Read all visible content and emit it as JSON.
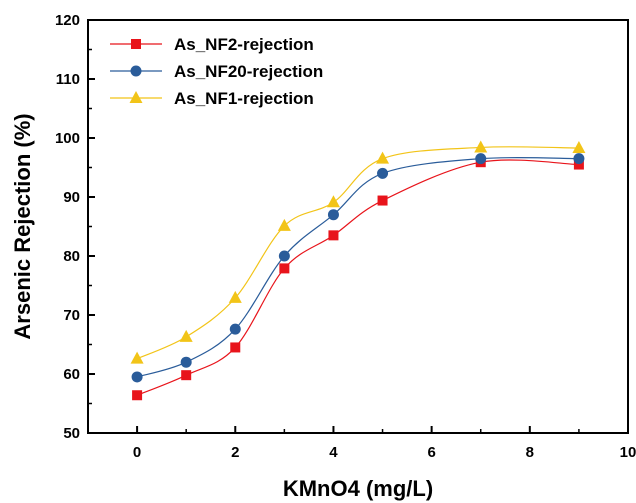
{
  "chart_data": {
    "type": "line",
    "xlabel": "KMnO4 (mg/L)",
    "ylabel": "Arsenic Rejection (%)",
    "xlim": [
      -1,
      10
    ],
    "ylim": [
      50,
      120
    ],
    "xticks": [
      0,
      2,
      4,
      6,
      8,
      10
    ],
    "yticks": [
      50,
      60,
      70,
      80,
      90,
      100,
      110,
      120
    ],
    "grid": false,
    "legend_position": "top-left",
    "series": [
      {
        "name": "As_NF2-rejection",
        "color": "#e8141b",
        "marker": "square",
        "x": [
          0,
          1,
          2,
          3,
          4,
          5,
          7,
          9
        ],
        "y": [
          56.4,
          59.8,
          64.5,
          77.9,
          83.5,
          89.4,
          95.9,
          95.5
        ]
      },
      {
        "name": "As_NF20-rejection",
        "color": "#2a5c9a",
        "marker": "circle",
        "x": [
          0,
          1,
          2,
          3,
          4,
          5,
          7,
          9
        ],
        "y": [
          59.5,
          62.0,
          67.6,
          80.0,
          87.0,
          94.0,
          96.5,
          96.5
        ]
      },
      {
        "name": "As_NF1-rejection",
        "color": "#f2c418",
        "marker": "triangle",
        "x": [
          0,
          1,
          2,
          3,
          4,
          5,
          7,
          9
        ],
        "y": [
          62.6,
          66.3,
          72.9,
          85.1,
          89.1,
          96.5,
          98.4,
          98.3
        ]
      }
    ]
  }
}
